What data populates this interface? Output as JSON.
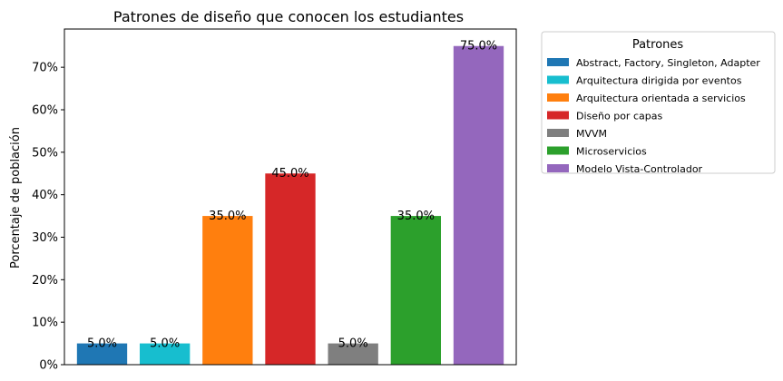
{
  "chart_data": {
    "type": "bar",
    "title": "Patrones de diseño que conocen los estudiantes",
    "xlabel": "",
    "ylabel": "Porcentaje de población",
    "ylim": [
      0,
      79
    ],
    "yticks": [
      0,
      10,
      20,
      30,
      40,
      50,
      60,
      70
    ],
    "ytick_labels": [
      "0%",
      "10%",
      "20%",
      "30%",
      "40%",
      "50%",
      "60%",
      "70%"
    ],
    "categories": [
      "Abstract, Factory, Singleton, Adapter",
      "Arquitectura dirigida por eventos",
      "Arquitectura orientada a servicios",
      "Diseño por capas",
      "MVVM",
      "Microservicios",
      "Modelo Vista-Controlador"
    ],
    "values": [
      5.0,
      5.0,
      35.0,
      45.0,
      5.0,
      35.0,
      75.0
    ],
    "value_labels": [
      "5.0%",
      "5.0%",
      "35.0%",
      "45.0%",
      "5.0%",
      "35.0%",
      "75.0%"
    ],
    "colors": [
      "#1f77b4",
      "#17becf",
      "#ff7f0e",
      "#d62728",
      "#7f7f7f",
      "#2ca02c",
      "#9467bd"
    ],
    "grid": false,
    "legend": {
      "title": "Patrones",
      "placement": "outside-right-top"
    }
  }
}
